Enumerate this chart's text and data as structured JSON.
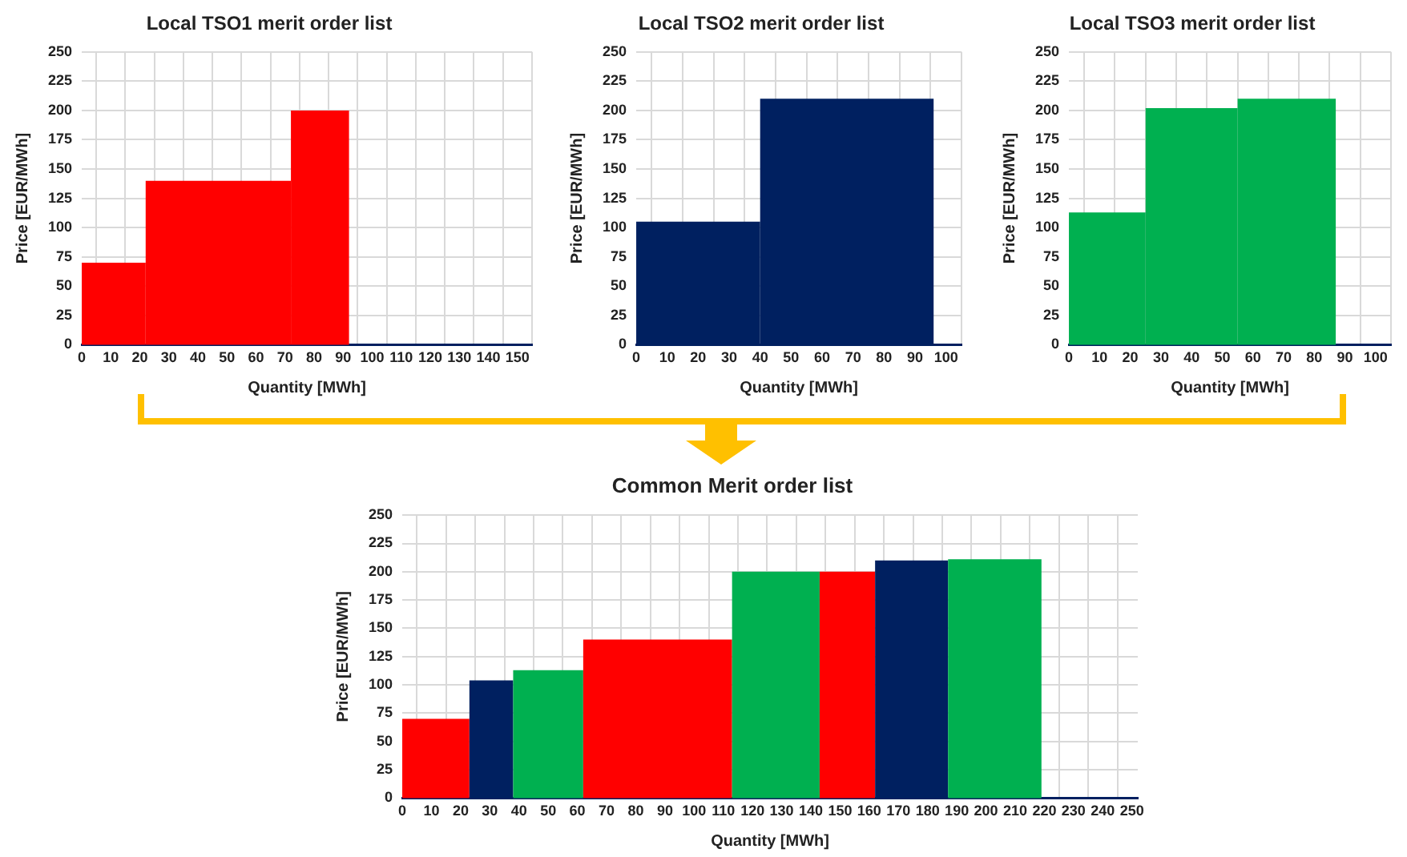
{
  "chart_data": [
    {
      "type": "histogram",
      "title": "Local TSO1 merit order list",
      "xlabel": "Quantity [MWh]",
      "ylabel": "Price [EUR/MWh]",
      "xlim": [
        0,
        155
      ],
      "xticks": [
        0,
        10,
        20,
        30,
        40,
        50,
        60,
        70,
        80,
        90,
        100,
        110,
        120,
        130,
        140,
        150
      ],
      "ylim": [
        0,
        250
      ],
      "yticks": [
        0,
        25,
        50,
        75,
        100,
        125,
        150,
        175,
        200,
        225,
        250
      ],
      "grid": true,
      "bins": [
        0,
        22,
        72,
        92
      ],
      "values": [
        70,
        140,
        200
      ],
      "color": "#ff0000"
    },
    {
      "type": "histogram",
      "title": "Local TSO2 merit order list",
      "xlabel": "Quantity [MWh]",
      "ylabel": "Price [EUR/MWh]",
      "xlim": [
        0,
        105
      ],
      "xticks": [
        0,
        10,
        20,
        30,
        40,
        50,
        60,
        70,
        80,
        90,
        100
      ],
      "ylim": [
        0,
        250
      ],
      "yticks": [
        0,
        25,
        50,
        75,
        100,
        125,
        150,
        175,
        200,
        225,
        250
      ],
      "grid": true,
      "bins": [
        0,
        40,
        96
      ],
      "values": [
        105,
        210
      ],
      "color": "#002060"
    },
    {
      "type": "histogram",
      "title": "Local TSO3 merit order list",
      "xlabel": "Quantity [MWh]",
      "ylabel": "Price [EUR/MWh]",
      "xlim": [
        0,
        105
      ],
      "xticks": [
        0,
        10,
        20,
        30,
        40,
        50,
        60,
        70,
        80,
        90,
        100
      ],
      "ylim": [
        0,
        250
      ],
      "yticks": [
        0,
        25,
        50,
        75,
        100,
        125,
        150,
        175,
        200,
        225,
        250
      ],
      "grid": true,
      "bins": [
        0,
        25,
        55,
        87
      ],
      "values": [
        113,
        202,
        210
      ],
      "color": "#00b050"
    },
    {
      "type": "histogram",
      "title": "Common Merit order list",
      "xlabel": "Quantity [MWh]",
      "ylabel": "Price [EUR/MWh]",
      "xlim": [
        0,
        252
      ],
      "xticks": [
        0,
        10,
        20,
        30,
        40,
        50,
        60,
        70,
        80,
        90,
        100,
        110,
        120,
        130,
        140,
        150,
        160,
        170,
        180,
        190,
        200,
        210,
        220,
        230,
        240,
        250
      ],
      "ylim": [
        0,
        250
      ],
      "yticks": [
        0,
        25,
        50,
        75,
        100,
        125,
        150,
        175,
        200,
        225,
        250
      ],
      "grid": true,
      "bins": [
        0,
        23,
        38,
        62,
        113,
        143,
        162,
        187,
        219
      ],
      "values": [
        70,
        104,
        113,
        140,
        200,
        200,
        210,
        211
      ],
      "colors": [
        "#ff0000",
        "#002060",
        "#00b050",
        "#ff0000",
        "#00b050",
        "#ff0000",
        "#002060",
        "#00b050"
      ]
    }
  ]
}
